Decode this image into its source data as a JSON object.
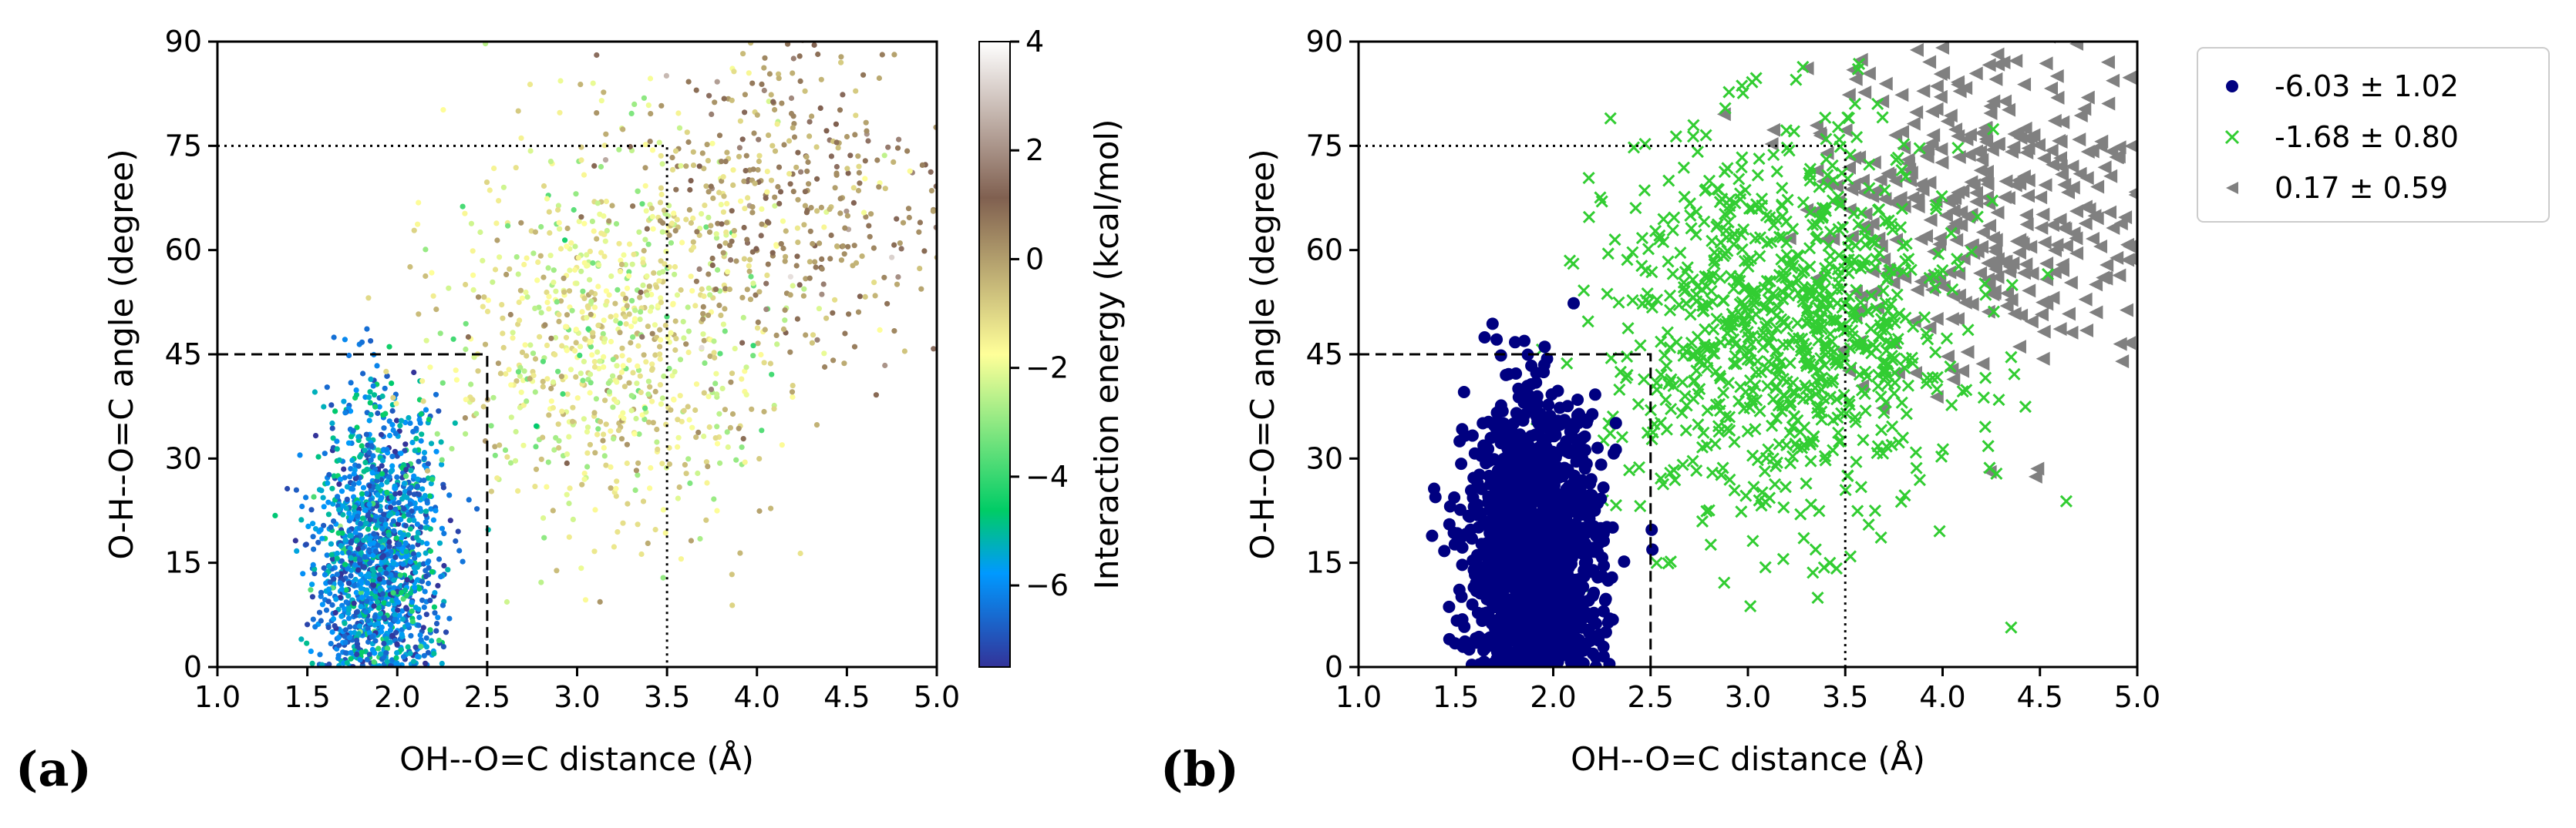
{
  "chart_data": [
    {
      "type": "scatter",
      "panel_label": "(a)",
      "xlabel": "OH--O=C distance (Å)",
      "ylabel": "O-H--O=C angle (degree)",
      "xlim": [
        1.0,
        5.0
      ],
      "ylim": [
        0,
        90
      ],
      "xticks": [
        "1.0",
        "1.5",
        "2.0",
        "2.5",
        "3.0",
        "3.5",
        "4.0",
        "4.5",
        "5.0"
      ],
      "yticks": [
        "0",
        "15",
        "30",
        "45",
        "60",
        "75",
        "90"
      ],
      "colorbar": {
        "label": "Interaction energy (kcal/mol)",
        "range": [
          -7.5,
          4
        ],
        "ticks": [
          "−6",
          "−4",
          "−2",
          "0",
          "2",
          "4"
        ],
        "colormap": "terrain"
      },
      "reference_lines": [
        {
          "style": "dashed",
          "x": 2.5,
          "y": 45
        },
        {
          "style": "dotted",
          "x": 3.5,
          "y": 75
        }
      ],
      "clusters": [
        {
          "x_mean": 1.9,
          "x_sd": 0.17,
          "y_mean": 16,
          "y_sd": 11,
          "energy": -6.0
        },
        {
          "x_mean": 3.2,
          "x_sd": 0.45,
          "y_mean": 48,
          "y_sd": 14,
          "energy": -1.7
        },
        {
          "x_mean": 4.2,
          "x_sd": 0.45,
          "y_mean": 68,
          "y_sd": 13,
          "energy": 0.2
        }
      ],
      "grid": false
    },
    {
      "type": "scatter",
      "panel_label": "(b)",
      "xlabel": "OH--O=C distance (Å)",
      "ylabel": "O-H--O=C angle (degree)",
      "xlim": [
        1.0,
        5.0
      ],
      "ylim": [
        0,
        90
      ],
      "xticks": [
        "1.0",
        "1.5",
        "2.0",
        "2.5",
        "3.0",
        "3.5",
        "4.0",
        "4.5",
        "5.0"
      ],
      "yticks": [
        "0",
        "15",
        "30",
        "45",
        "60",
        "75",
        "90"
      ],
      "legend_position": "outside right, top",
      "series": [
        {
          "name": "-6.03 ± 1.02",
          "marker": "circle",
          "color": "#000080",
          "x_mean": 1.9,
          "x_sd": 0.17,
          "y_mean": 16,
          "y_sd": 11
        },
        {
          "name": "-1.68 ± 0.80",
          "marker": "x",
          "color": "#32cd32",
          "x_mean": 3.2,
          "x_sd": 0.45,
          "y_mean": 48,
          "y_sd": 14
        },
        {
          "name": "0.17 ± 0.59",
          "marker": "triangle-left",
          "color": "#808080",
          "x_mean": 4.2,
          "x_sd": 0.45,
          "y_mean": 68,
          "y_sd": 13
        }
      ],
      "reference_lines": [
        {
          "style": "dashed",
          "x": 2.5,
          "y": 45
        },
        {
          "style": "dotted",
          "x": 3.5,
          "y": 75
        }
      ],
      "grid": false
    }
  ]
}
